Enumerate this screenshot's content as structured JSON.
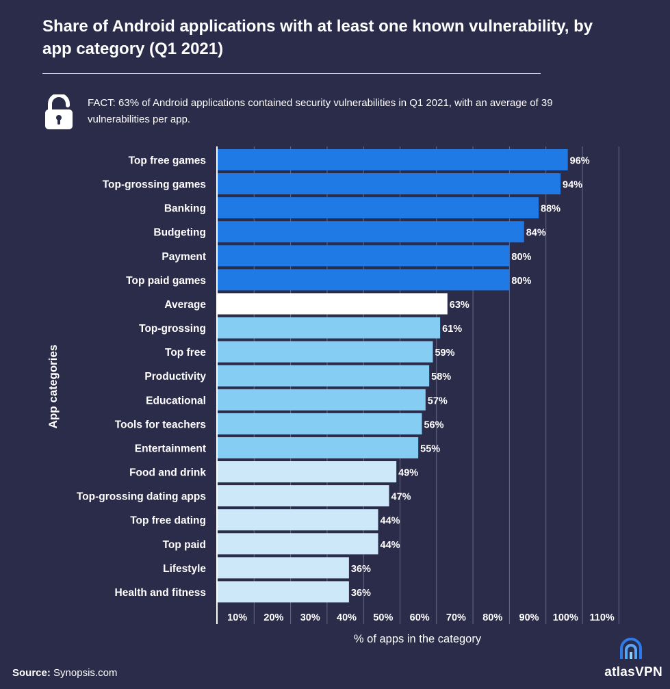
{
  "title": "Share of Android applications with at least one known vulnerability, by app category  (Q1 2021)",
  "fact": "FACT: 63% of Android applications contained security vulnerabilities in Q1 2021, with an average of 39 vulnerabilities per app.",
  "source_label": "Source:",
  "source_value": "Synopsis.com",
  "brand": "atlasVPN",
  "icons": {
    "fact": "unlocked-padlock-icon",
    "brand": "atlasvpn-logo-icon"
  },
  "colors": {
    "background": "#2b2b4a",
    "high": "#1f7ae6",
    "average": "#ffffff",
    "mid": "#86cdf3",
    "low": "#cce8f9"
  },
  "chart_data": {
    "type": "bar",
    "orientation": "horizontal",
    "categories": [
      "Top free games",
      "Top-grossing games",
      "Banking",
      "Budgeting",
      "Payment",
      "Top paid games",
      "Average",
      "Top-grossing",
      "Top free",
      "Productivity",
      "Educational",
      "Tools for teachers",
      "Entertainment",
      "Food and drink",
      "Top-grossing dating apps",
      "Top free dating",
      "Top paid",
      "Lifestyle",
      "Health and fitness"
    ],
    "values": [
      96,
      94,
      88,
      84,
      80,
      80,
      63,
      61,
      59,
      58,
      57,
      56,
      55,
      49,
      47,
      44,
      44,
      36,
      36
    ],
    "value_labels": [
      "96%",
      "94%",
      "88%",
      "84%",
      "80%",
      "80%",
      "63%",
      "61%",
      "59%",
      "58%",
      "57%",
      "56%",
      "55%",
      "49%",
      "47%",
      "44%",
      "44%",
      "36%",
      "36%"
    ],
    "color_groups": [
      "high",
      "high",
      "high",
      "high",
      "high",
      "high",
      "average",
      "mid",
      "mid",
      "mid",
      "mid",
      "mid",
      "mid",
      "low",
      "low",
      "low",
      "low",
      "low",
      "low"
    ],
    "xticks": [
      10,
      20,
      30,
      40,
      50,
      60,
      70,
      80,
      90,
      100,
      110
    ],
    "xtick_labels": [
      "10%",
      "20%",
      "30%",
      "40%",
      "50%",
      "60%",
      "70%",
      "80%",
      "90%",
      "100%",
      "110%"
    ],
    "xlim": [
      0,
      110
    ],
    "xlabel": "% of apps in the category",
    "ylabel": "App categories",
    "grid": true
  }
}
